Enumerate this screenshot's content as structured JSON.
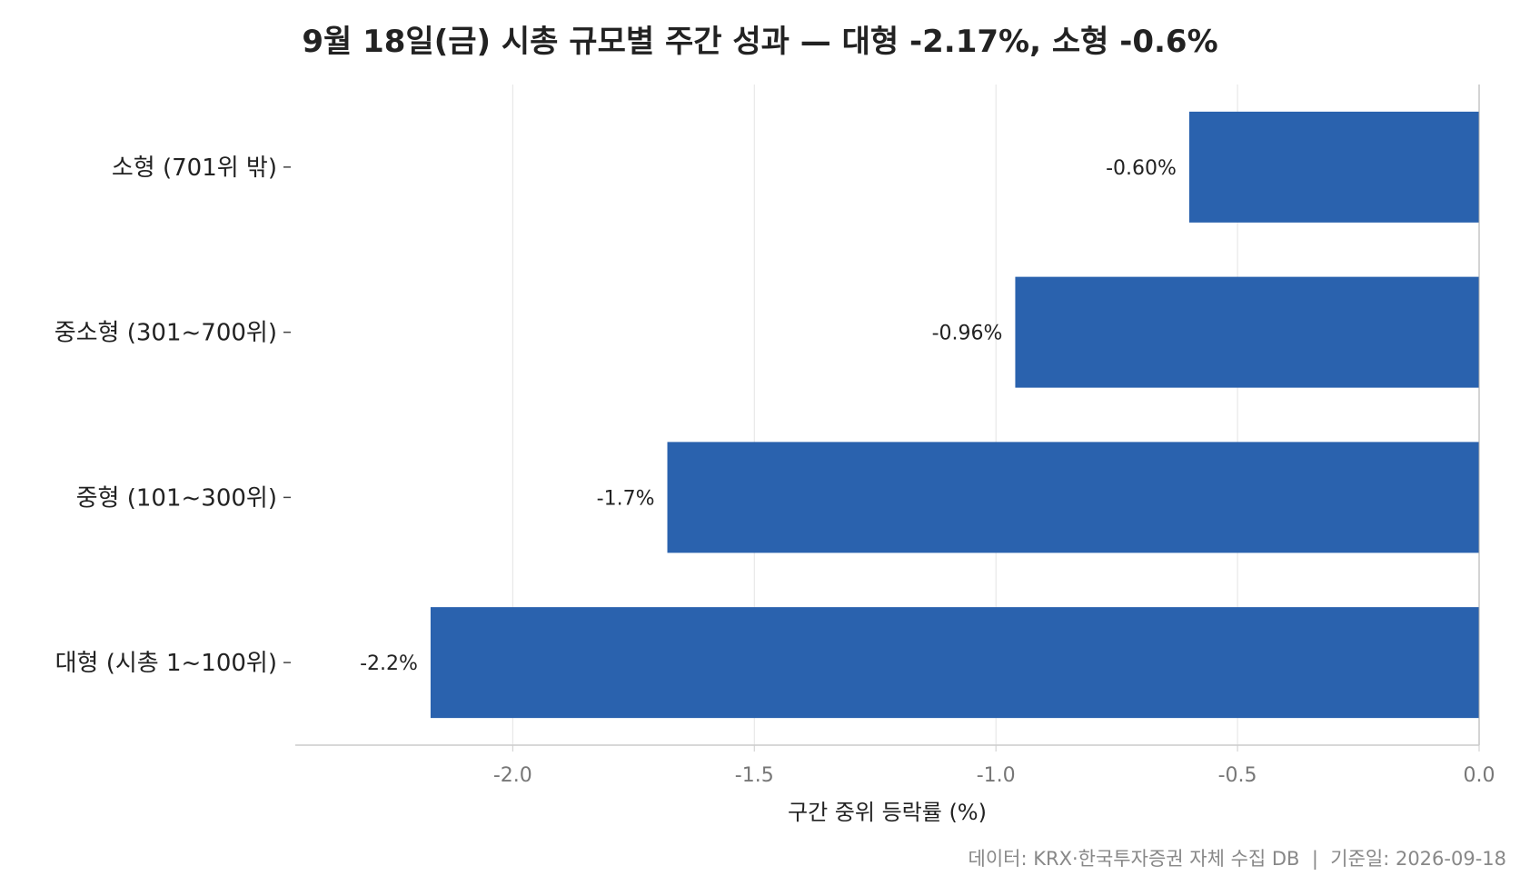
{
  "chart_data": {
    "type": "bar",
    "orientation": "horizontal",
    "title": "9월 18일(금) 시총 규모별 주간 성과 — 대형 -2.17%, 소형 -0.6%",
    "categories": [
      "소형 (701위 밖)",
      "중소형 (301~700위)",
      "중형 (101~300위)",
      "대형 (시총 1~100위)"
    ],
    "values": [
      -0.6,
      -0.96,
      -1.68,
      -2.17
    ],
    "value_labels": [
      "-0.60%",
      "-0.96%",
      "-1.7%",
      "-2.2%"
    ],
    "xlabel": "구간 중위 등락률 (%)",
    "ylabel": "",
    "xlim": [
      -2.45,
      0.0
    ],
    "xticks": [
      -2.0,
      -1.5,
      -1.0,
      -0.5,
      0.0
    ],
    "xtick_labels": [
      "-2.0",
      "-1.5",
      "-1.0",
      "-0.5",
      "0.0"
    ],
    "grid": "vertical",
    "legend": "none",
    "bar_color": "#2a62ae",
    "grid_color": "#e3e3e3",
    "axis_color": "#cccccc",
    "source": "데이터: KRX·한국투자증권 자체 수집 DB  |  기준일: 2026-09-18"
  }
}
